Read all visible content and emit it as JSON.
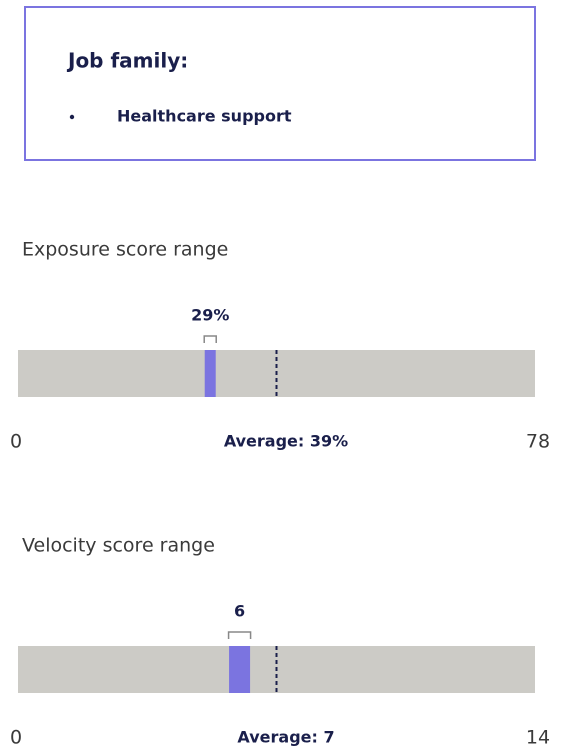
{
  "job_family": {
    "title": "Job family:",
    "items": [
      "Healthcare support"
    ]
  },
  "chart_data": [
    {
      "type": "range",
      "title": "Exposure score range",
      "value": 29,
      "value_label": "29%",
      "average": 39,
      "average_label": "Average: 39%",
      "xlim": [
        0,
        78
      ],
      "xticks": [
        0,
        78
      ],
      "color": "#7b74e0"
    },
    {
      "type": "range",
      "title": "Velocity score range",
      "value": 6,
      "average": 7,
      "average_label": "Average: 7",
      "xlim": [
        0,
        14
      ],
      "xticks": [
        0,
        14
      ],
      "color": "#7b74e0"
    }
  ]
}
